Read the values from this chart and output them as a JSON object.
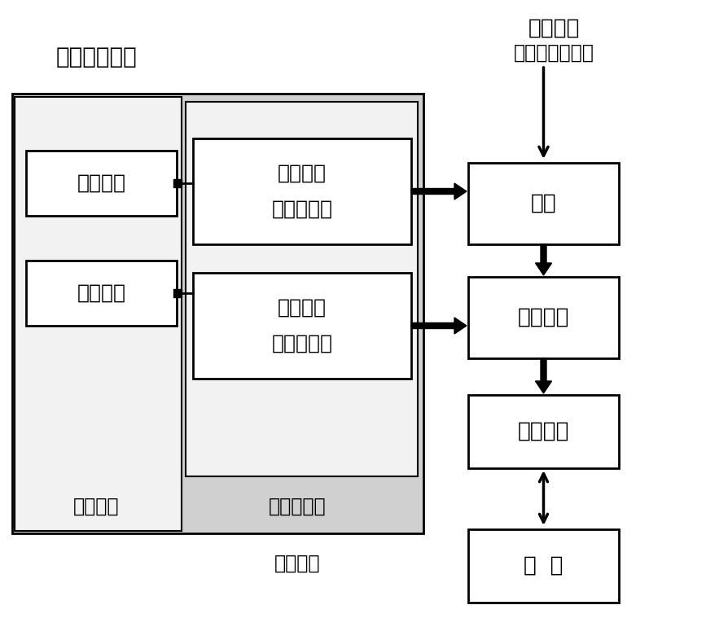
{
  "figsize": [
    8.67,
    7.7
  ],
  "dpi": 100,
  "bg_color": "#ffffff",
  "labels": {
    "title_top_left": "差压波动信号",
    "title_aux": "辅助变量",
    "title_soft": "软测量模型",
    "title_dominant": "主导变量",
    "other_signal": "其他信号",
    "other_signal2": "（压力，流量）",
    "sample": "样本信号",
    "measure": "测量信号",
    "wavelet1_line1": "小波分解",
    "wavelet1_line2": "特征值提取",
    "wavelet2_line1": "小波分解",
    "wavelet2_line2": "特征值提取",
    "train": "训练",
    "criterion": "判别准则",
    "fuzzy": "模糊判别",
    "flow_type": "流  型"
  },
  "colors": {
    "white": "#ffffff",
    "black": "#000000",
    "light_gray": "#e8e8e8",
    "mid_gray": "#c8c8c8"
  }
}
